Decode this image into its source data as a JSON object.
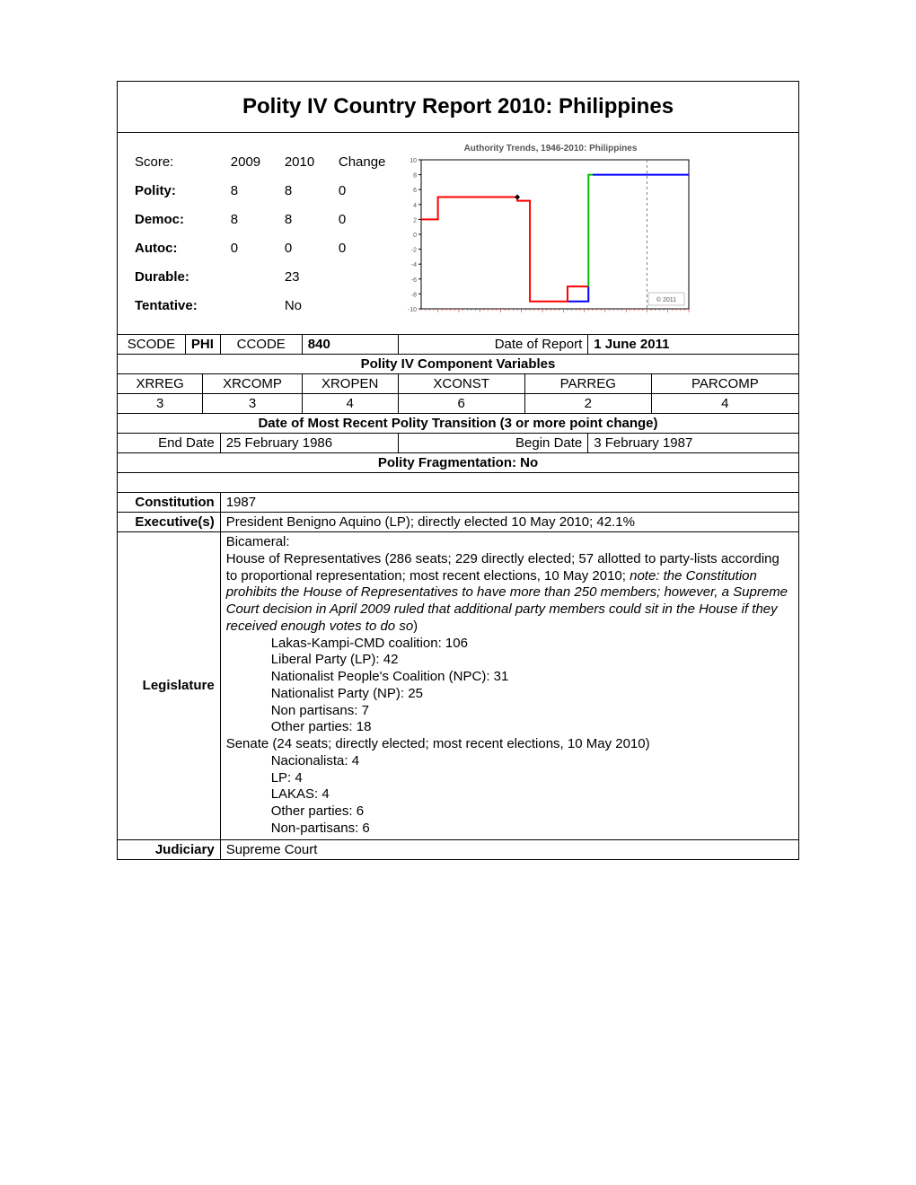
{
  "title": "Polity IV Country Report 2010: Philippines",
  "scores": {
    "header_score": "Score:",
    "header_2009": "2009",
    "header_2010": "2010",
    "header_change": "Change",
    "rows": [
      {
        "label": "Polity:",
        "v2009": "8",
        "v2010": "8",
        "change": "0"
      },
      {
        "label": "Democ:",
        "v2009": "8",
        "v2010": "8",
        "change": "0"
      },
      {
        "label": "Autoc:",
        "v2009": "0",
        "v2010": "0",
        "change": "0"
      },
      {
        "label": "Durable:",
        "v2009": "",
        "v2010": "23",
        "change": ""
      },
      {
        "label": "Tentative:",
        "v2009": "",
        "v2010": "No",
        "change": ""
      }
    ]
  },
  "chart": {
    "title": "Authority Trends, 1946-2010: Philippines",
    "title_fontsize": 10,
    "title_color": "#555555",
    "xlim": [
      1946,
      2010
    ],
    "ylim": [
      -10,
      10
    ],
    "ytick_step": 2,
    "xtick_step": 5,
    "axis_color": "#000000",
    "grid": false,
    "vline_year": 2000,
    "vline_color": "#808080",
    "copyright": "© 2011",
    "series_red": {
      "color": "#ff0000",
      "width": 2,
      "points": [
        [
          1946,
          2
        ],
        [
          1950,
          2
        ],
        [
          1950,
          5
        ],
        [
          1969,
          5
        ],
        [
          1969,
          4.5
        ],
        [
          1972,
          4.5
        ],
        [
          1972,
          -9
        ],
        [
          1981,
          -9
        ],
        [
          1981,
          -7
        ],
        [
          1986,
          -7
        ]
      ]
    },
    "series_green": {
      "color": "#00c000",
      "width": 2,
      "points": [
        [
          1986,
          -7
        ],
        [
          1986,
          8
        ],
        [
          1987,
          8
        ]
      ]
    },
    "series_blue": {
      "color": "#0000ff",
      "width": 2,
      "points": [
        [
          1987,
          8
        ],
        [
          2010,
          8
        ]
      ]
    },
    "series_blue_pre": {
      "color": "#0000ff",
      "width": 2,
      "points": [
        [
          1981,
          -9
        ],
        [
          1986,
          -9
        ],
        [
          1986,
          -7
        ]
      ]
    },
    "marker": {
      "year": 1969,
      "value": 5,
      "shape": "diamond",
      "color": "#000000"
    }
  },
  "codes": {
    "scode_label": "SCODE",
    "scode": "PHI",
    "ccode_label": "CCODE",
    "ccode": "840",
    "date_label": "Date of Report",
    "date": "1 June 2011"
  },
  "components": {
    "header": "Polity IV Component Variables",
    "labels": [
      "XRREG",
      "XRCOMP",
      "XROPEN",
      "XCONST",
      "PARREG",
      "PARCOMP"
    ],
    "values": [
      "3",
      "3",
      "4",
      "6",
      "2",
      "4"
    ]
  },
  "transition": {
    "header": "Date of Most Recent Polity Transition (3 or more point change)",
    "end_label": "End Date",
    "end_value": "25 February 1986",
    "begin_label": "Begin Date",
    "begin_value": "3 February 1987"
  },
  "fragmentation": "Polity Fragmentation:  No",
  "gov": {
    "constitution_label": "Constitution",
    "constitution": "1987",
    "executive_label": "Executive(s)",
    "executive": "President Benigno Aquino (LP); directly elected 10 May 2010; 42.1%",
    "legislature_label": "Legislature",
    "legislature": {
      "l0": "Bicameral:",
      "l1": "House of Representatives (286 seats; 229 directly elected; 57 allotted to party-lists according to proportional representation; most recent elections, 10 May 2010; ",
      "l1_note": "note: the Constitution prohibits the House of Representatives to have more than 250 members; however, a Supreme Court decision in April 2009 ruled that additional party members could sit in the House if they received enough votes to do so",
      "l1_tail": ")",
      "h1": "Lakas-Kampi-CMD coalition: 106",
      "h2": "Liberal Party (LP): 42",
      "h3": "Nationalist People's Coalition (NPC): 31",
      "h4": "Nationalist Party (NP): 25",
      "h5": "Non partisans: 7",
      "h6": "Other parties: 18",
      "s0": "Senate (24 seats; directly elected; most recent elections, 10 May 2010)",
      "s1": "Nacionalista: 4",
      "s2": "LP: 4",
      "s3": "LAKAS: 4",
      "s4": "Other parties: 6",
      "s5": "Non-partisans: 6"
    },
    "judiciary_label": "Judiciary",
    "judiciary": "Supreme Court"
  }
}
